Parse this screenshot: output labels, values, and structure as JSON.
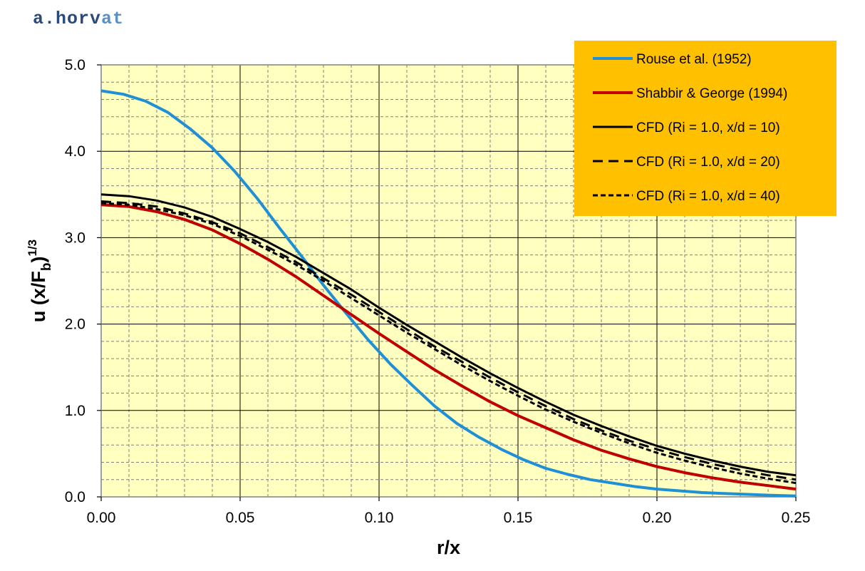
{
  "watermark": {
    "part1": "a.horv",
    "part2": "at"
  },
  "chart_data": {
    "type": "line",
    "xlabel": "r/x",
    "ylabel": {
      "base": "u (x/F",
      "sub": "b",
      "close": ")",
      "sup": "1/3"
    },
    "xlim": [
      0,
      0.25
    ],
    "ylim": [
      0,
      5
    ],
    "x_ticks": [
      0,
      0.05,
      0.1,
      0.15,
      0.2,
      0.25
    ],
    "x_tick_labels": [
      "0.00",
      "0.05",
      "0.10",
      "0.15",
      "0.20",
      "0.25"
    ],
    "y_ticks": [
      0,
      1,
      2,
      3,
      4,
      5
    ],
    "y_tick_labels": [
      "0.0",
      "1.0",
      "2.0",
      "3.0",
      "4.0",
      "5.0"
    ],
    "minor_x_step": 0.01,
    "minor_y_step": 0.2,
    "grid": true,
    "plot_background": "#ffffc0",
    "legend_background": "#ffc000",
    "legend_position": "top-right",
    "series": [
      {
        "name": "Rouse et al. (1952)",
        "color": "#1f8fd6",
        "dash": "solid",
        "x": [
          0,
          0.008,
          0.016,
          0.024,
          0.032,
          0.04,
          0.048,
          0.056,
          0.064,
          0.072,
          0.08,
          0.088,
          0.096,
          0.104,
          0.112,
          0.12,
          0.128,
          0.136,
          0.144,
          0.152,
          0.16,
          0.168,
          0.176,
          0.184,
          0.192,
          0.2,
          0.208,
          0.216,
          0.224,
          0.232,
          0.24,
          0.25
        ],
        "y": [
          4.7,
          4.66,
          4.58,
          4.45,
          4.26,
          4.04,
          3.77,
          3.46,
          3.12,
          2.79,
          2.45,
          2.13,
          1.82,
          1.54,
          1.29,
          1.05,
          0.85,
          0.69,
          0.55,
          0.43,
          0.33,
          0.26,
          0.2,
          0.16,
          0.12,
          0.09,
          0.07,
          0.05,
          0.04,
          0.03,
          0.02,
          0.01
        ]
      },
      {
        "name": "Shabbir & George (1994)",
        "color": "#c00000",
        "dash": "solid",
        "x": [
          0,
          0.01,
          0.02,
          0.03,
          0.04,
          0.05,
          0.06,
          0.07,
          0.08,
          0.09,
          0.1,
          0.11,
          0.12,
          0.13,
          0.14,
          0.15,
          0.16,
          0.17,
          0.18,
          0.19,
          0.2,
          0.21,
          0.22,
          0.23,
          0.24,
          0.25
        ],
        "y": [
          3.38,
          3.36,
          3.3,
          3.21,
          3.09,
          2.93,
          2.75,
          2.55,
          2.33,
          2.11,
          1.89,
          1.68,
          1.47,
          1.28,
          1.1,
          0.94,
          0.8,
          0.66,
          0.54,
          0.44,
          0.35,
          0.28,
          0.22,
          0.17,
          0.13,
          0.09
        ]
      },
      {
        "name": "CFD (Ri = 1.0, x/d = 10)",
        "color": "#000000",
        "dash": "solid",
        "x": [
          0,
          0.01,
          0.02,
          0.03,
          0.04,
          0.05,
          0.06,
          0.07,
          0.08,
          0.09,
          0.1,
          0.11,
          0.12,
          0.13,
          0.14,
          0.15,
          0.16,
          0.17,
          0.18,
          0.19,
          0.2,
          0.21,
          0.22,
          0.23,
          0.24,
          0.25
        ],
        "y": [
          3.5,
          3.48,
          3.43,
          3.35,
          3.24,
          3.1,
          2.95,
          2.78,
          2.59,
          2.4,
          2.19,
          1.99,
          1.8,
          1.61,
          1.43,
          1.26,
          1.1,
          0.95,
          0.82,
          0.7,
          0.59,
          0.5,
          0.42,
          0.35,
          0.29,
          0.25
        ]
      },
      {
        "name": "CFD (Ri = 1.0, x/d = 20)",
        "color": "#000000",
        "dash": "long",
        "x": [
          0,
          0.01,
          0.02,
          0.03,
          0.04,
          0.05,
          0.06,
          0.07,
          0.08,
          0.09,
          0.1,
          0.11,
          0.12,
          0.13,
          0.14,
          0.15,
          0.16,
          0.17,
          0.18,
          0.19,
          0.2,
          0.21,
          0.22,
          0.23,
          0.24,
          0.25
        ],
        "y": [
          3.42,
          3.4,
          3.36,
          3.28,
          3.18,
          3.05,
          2.89,
          2.72,
          2.53,
          2.34,
          2.14,
          1.94,
          1.74,
          1.56,
          1.38,
          1.21,
          1.05,
          0.9,
          0.77,
          0.65,
          0.55,
          0.46,
          0.38,
          0.31,
          0.25,
          0.2
        ]
      },
      {
        "name": "CFD (Ri = 1.0, x/d = 40)",
        "color": "#000000",
        "dash": "short",
        "x": [
          0,
          0.01,
          0.02,
          0.03,
          0.04,
          0.05,
          0.06,
          0.07,
          0.08,
          0.09,
          0.1,
          0.11,
          0.12,
          0.13,
          0.14,
          0.15,
          0.16,
          0.17,
          0.18,
          0.19,
          0.2,
          0.21,
          0.22,
          0.23,
          0.24,
          0.25
        ],
        "y": [
          3.4,
          3.38,
          3.33,
          3.26,
          3.16,
          3.02,
          2.86,
          2.69,
          2.5,
          2.3,
          2.1,
          1.9,
          1.71,
          1.52,
          1.34,
          1.17,
          1.01,
          0.87,
          0.74,
          0.62,
          0.51,
          0.42,
          0.34,
          0.27,
          0.21,
          0.16
        ]
      }
    ]
  }
}
